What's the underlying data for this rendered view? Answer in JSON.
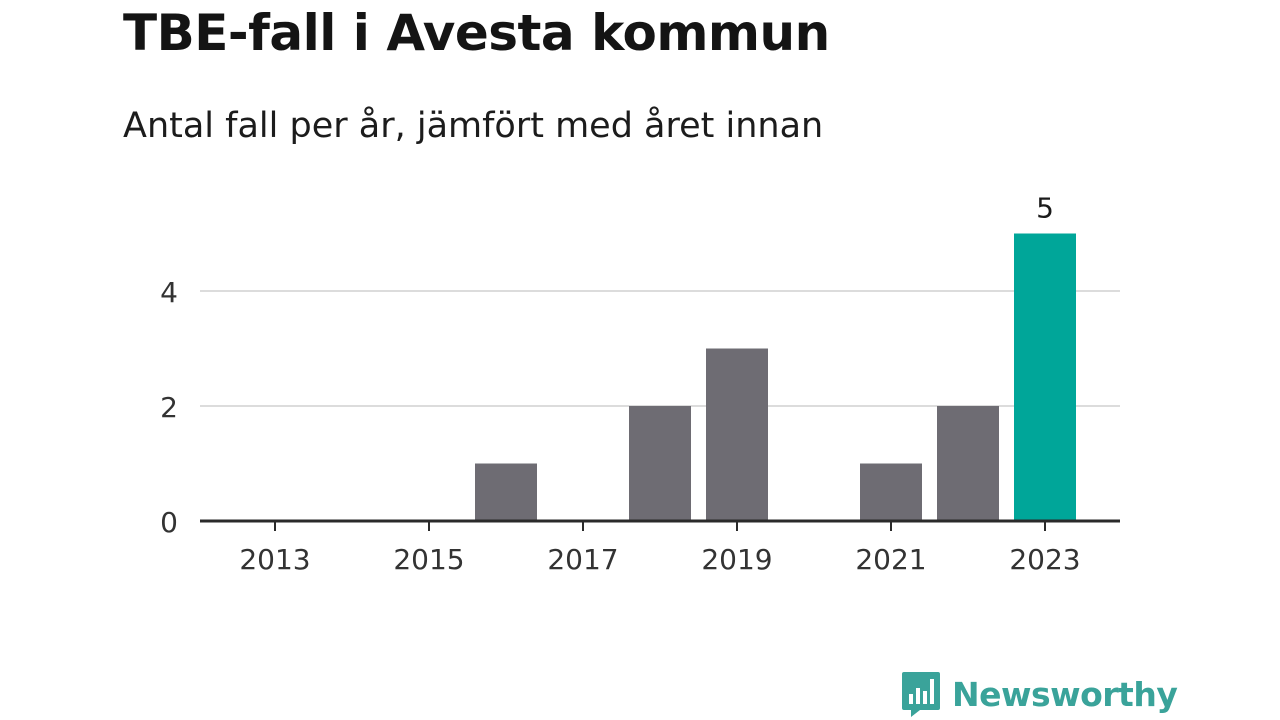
{
  "title": "TBE-fall i Avesta kommun",
  "subtitle": "Antal fall per år, jämfört med året innan",
  "colors": {
    "bar": "#6e6c73",
    "highlight": "#00a699",
    "grid": "#dcdcdc",
    "axis": "#2a2a2a",
    "text": "#333333",
    "brand": "#3aa39a"
  },
  "chart_data": {
    "type": "bar",
    "categories": [
      "2013",
      "2014",
      "2015",
      "2016",
      "2017",
      "2018",
      "2019",
      "2020",
      "2021",
      "2022",
      "2023"
    ],
    "values": [
      0,
      0,
      0,
      1,
      0,
      2,
      3,
      0,
      1,
      2,
      5
    ],
    "x_tick_labels": [
      "2013",
      "2015",
      "2017",
      "2019",
      "2021",
      "2023"
    ],
    "y_ticks": [
      0,
      2,
      4
    ],
    "ylim": [
      0,
      5
    ],
    "highlight_category": "2023",
    "data_labels": [
      {
        "category": "2023",
        "label": "5"
      }
    ],
    "grid": true,
    "title": "TBE-fall i Avesta kommun",
    "xlabel": "",
    "ylabel": ""
  },
  "brand": {
    "name": "Newsworthy",
    "icon": "bar-chart-speech-bubble-icon"
  }
}
